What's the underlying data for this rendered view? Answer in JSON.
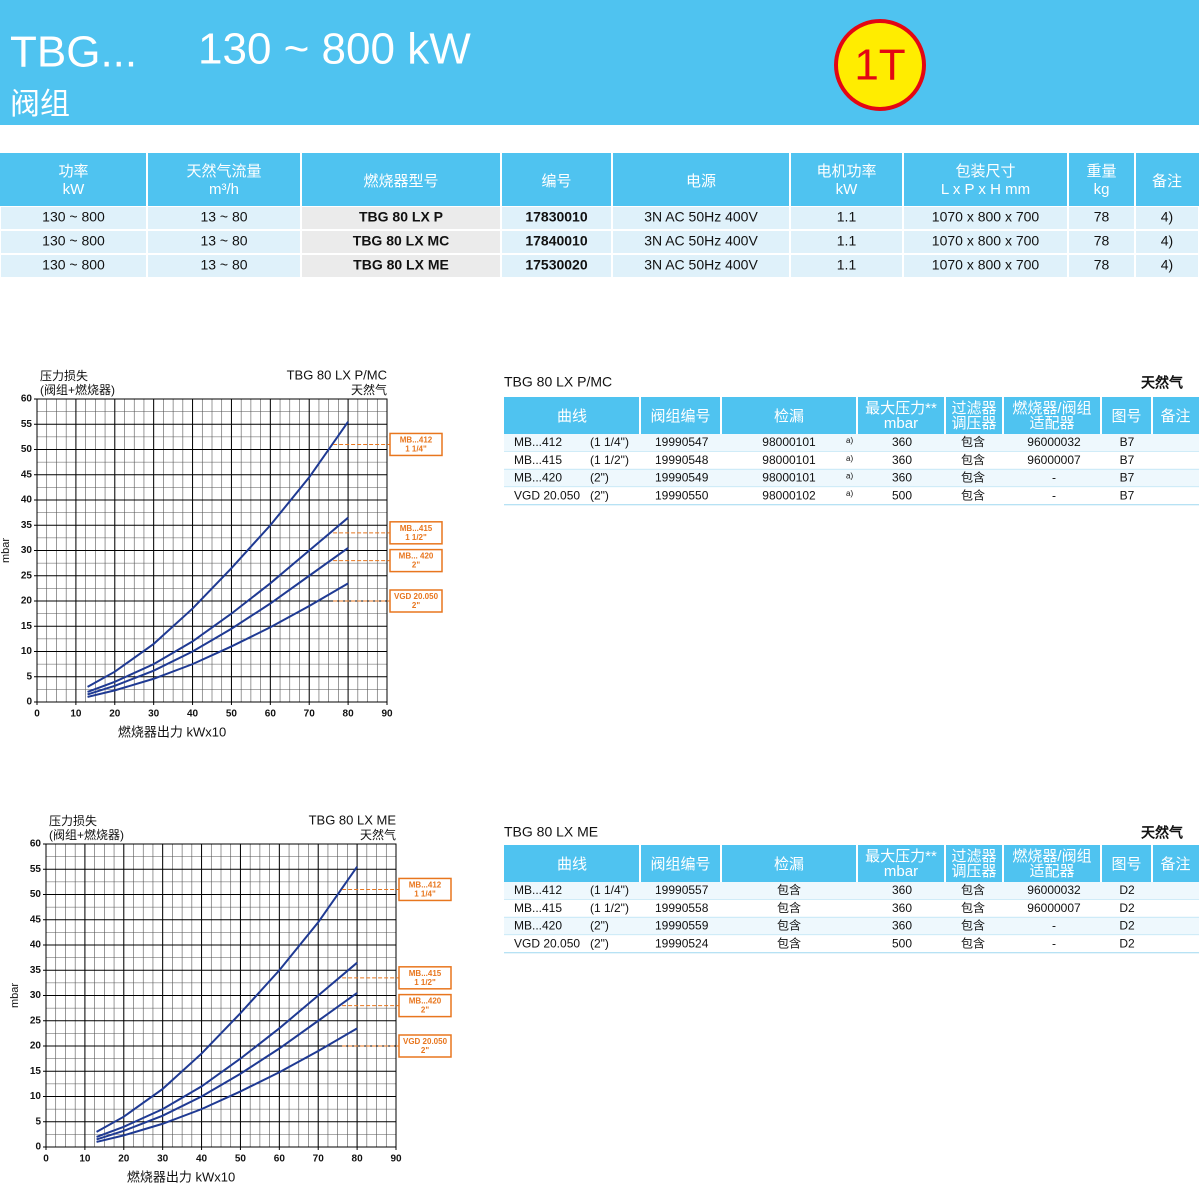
{
  "header": {
    "title": "TBG...",
    "range": "130 ~ 800 kW",
    "subtitle": "阀组",
    "badge": "1T"
  },
  "product_table": {
    "headers": [
      [
        "功率",
        "kW"
      ],
      [
        "天然气流量",
        "m³/h"
      ],
      [
        "燃烧器型号"
      ],
      [
        "编号"
      ],
      [
        "电源"
      ],
      [
        "电机功率",
        "kW"
      ],
      [
        "包装尺寸",
        "L x P x H  mm"
      ],
      [
        "重量",
        "kg"
      ],
      [
        "备注"
      ]
    ],
    "rows": [
      [
        "130 ~ 800",
        "13 ~ 80",
        "TBG 80 LX P",
        "17830010",
        "3N AC 50Hz 400V",
        "1.1",
        "1070 x 800 x 700",
        "78",
        "4)"
      ],
      [
        "130 ~ 800",
        "13 ~ 80",
        "TBG 80 LX MC",
        "17840010",
        "3N AC 50Hz 400V",
        "1.1",
        "1070 x 800 x 700",
        "78",
        "4)"
      ],
      [
        "130 ~ 800",
        "13 ~ 80",
        "TBG 80 LX ME",
        "17530020",
        "3N AC 50Hz 400V",
        "1.1",
        "1070 x 800 x 700",
        "78",
        "4)"
      ]
    ]
  },
  "chart_data": [
    {
      "type": "line",
      "title": "TBG 80 LX P/MC",
      "subtitle": "天然气",
      "y_title": [
        "压力损失",
        "(阀组+燃烧器)"
      ],
      "y_label": "mbar",
      "x_label": "燃烧器出力 kWx10",
      "xlim": [
        0,
        90
      ],
      "xticks": [
        0,
        10,
        20,
        30,
        40,
        50,
        60,
        70,
        80,
        90
      ],
      "ylim": [
        0,
        60
      ],
      "yticks": [
        0,
        5,
        10,
        15,
        20,
        25,
        30,
        35,
        40,
        45,
        50,
        55,
        60
      ],
      "grid": true,
      "x": [
        13,
        20,
        30,
        40,
        50,
        60,
        70,
        80
      ],
      "series": [
        {
          "name": "MB...412",
          "size": "1 1/4\"",
          "color": "#1f3a93",
          "values": [
            3,
            6,
            11.5,
            18.5,
            26.5,
            35,
            44.5,
            55.5
          ]
        },
        {
          "name": "MB...415",
          "size": "1 1/2\"",
          "color": "#1f3a93",
          "values": [
            2,
            4,
            7.5,
            12,
            17.5,
            23.5,
            30,
            36.5
          ]
        },
        {
          "name": "MB... 420",
          "size": "2\"",
          "color": "#1f3a93",
          "values": [
            1.5,
            3.2,
            6.2,
            10,
            14.5,
            19.5,
            25,
            30.5
          ]
        },
        {
          "name": "VGD 20.050",
          "size": "2\"",
          "color": "#1f3a93",
          "values": [
            1,
            2.3,
            4.6,
            7.5,
            11,
            14.8,
            19,
            23.5
          ]
        }
      ]
    },
    {
      "type": "line",
      "title": "TBG 80 LX ME",
      "subtitle": "天然气",
      "y_title": [
        "压力损失",
        "(阀组+燃烧器)"
      ],
      "y_label": "mbar",
      "x_label": "燃烧器出力 kWx10",
      "xlim": [
        0,
        90
      ],
      "xticks": [
        0,
        10,
        20,
        30,
        40,
        50,
        60,
        70,
        80,
        90
      ],
      "ylim": [
        0,
        60
      ],
      "yticks": [
        0,
        5,
        10,
        15,
        20,
        25,
        30,
        35,
        40,
        45,
        50,
        55,
        60
      ],
      "grid": true,
      "x": [
        13,
        20,
        30,
        40,
        50,
        60,
        70,
        80
      ],
      "series": [
        {
          "name": "MB...412",
          "size": "1 1/4\"",
          "color": "#1f3a93",
          "values": [
            3,
            6,
            11.5,
            18.5,
            26.5,
            35,
            44.5,
            55.5
          ]
        },
        {
          "name": "MB...415",
          "size": "1 1/2\"",
          "color": "#1f3a93",
          "values": [
            2,
            4,
            7.5,
            12,
            17.5,
            23.5,
            30,
            36.5
          ]
        },
        {
          "name": "MB...420",
          "size": "2\"",
          "color": "#1f3a93",
          "values": [
            1.5,
            3.2,
            6.2,
            10,
            14.5,
            19.5,
            25,
            30.5
          ]
        },
        {
          "name": "VGD 20.050",
          "size": "2\"",
          "color": "#1f3a93",
          "values": [
            1,
            2.3,
            4.6,
            7.5,
            11,
            14.8,
            19,
            23.5
          ]
        }
      ]
    }
  ],
  "valve_tables": [
    {
      "title": "TBG 80 LX P/MC",
      "gas": "天然气",
      "headers": [
        [
          "曲线"
        ],
        [
          "阀组编号"
        ],
        [
          "检漏"
        ],
        [
          "最大压力**",
          "mbar"
        ],
        [
          "过滤器",
          "调压器"
        ],
        [
          "燃烧器/阀组",
          "适配器"
        ],
        [
          "图号"
        ],
        [
          "备注"
        ]
      ],
      "rows": [
        {
          "curve": "MB...412",
          "size": "(1 1/4\")",
          "code": "19990547",
          "leak": "98000101",
          "note": "a)",
          "pmax": "360",
          "filter": "包含",
          "adapter": "96000032",
          "drawing": "B7"
        },
        {
          "curve": "MB...415",
          "size": "(1 1/2\")",
          "code": "19990548",
          "leak": "98000101",
          "note": "a)",
          "pmax": "360",
          "filter": "包含",
          "adapter": "96000007",
          "drawing": "B7"
        },
        {
          "curve": "MB...420",
          "size": "(2\")",
          "code": "19990549",
          "leak": "98000101",
          "note": "a)",
          "pmax": "360",
          "filter": "包含",
          "adapter": "-",
          "drawing": "B7"
        },
        {
          "curve": "VGD 20.050",
          "size": "(2\")",
          "code": "19990550",
          "leak": "98000102",
          "note": "a)",
          "pmax": "500",
          "filter": "包含",
          "adapter": "-",
          "drawing": "B7"
        }
      ]
    },
    {
      "title": "TBG 80 LX ME",
      "gas": "天然气",
      "headers": [
        [
          "曲线"
        ],
        [
          "阀组编号"
        ],
        [
          "检漏"
        ],
        [
          "最大压力**",
          "mbar"
        ],
        [
          "过滤器",
          "调压器"
        ],
        [
          "燃烧器/阀组",
          "适配器"
        ],
        [
          "图号"
        ],
        [
          "备注"
        ]
      ],
      "rows": [
        {
          "curve": "MB...412",
          "size": "(1 1/4\")",
          "code": "19990557",
          "leak": "包含",
          "pmax": "360",
          "filter": "包含",
          "adapter": "96000032",
          "drawing": "D2"
        },
        {
          "curve": "MB...415",
          "size": "(1 1/2\")",
          "code": "19990558",
          "leak": "包含",
          "pmax": "360",
          "filter": "包含",
          "adapter": "96000007",
          "drawing": "D2"
        },
        {
          "curve": "MB...420",
          "size": "(2\")",
          "code": "19990559",
          "leak": "包含",
          "pmax": "360",
          "filter": "包含",
          "adapter": "-",
          "drawing": "D2"
        },
        {
          "curve": "VGD 20.050",
          "size": "(2\")",
          "code": "19990524",
          "leak": "包含",
          "pmax": "500",
          "filter": "包含",
          "adapter": "-",
          "drawing": "D2"
        }
      ]
    }
  ]
}
